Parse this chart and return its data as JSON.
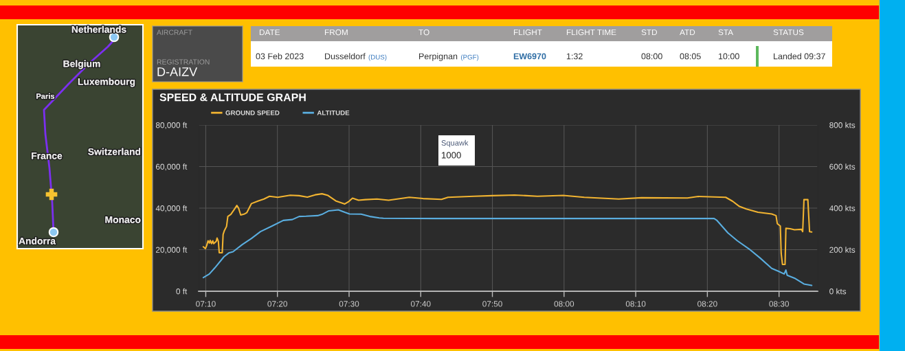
{
  "chart_data": [
    {
      "type": "other",
      "annotations": [
        "Netherlands",
        "Belgium",
        "Luxembourg",
        "Paris",
        "France",
        "Switzerland",
        "Monaco",
        "Andorra"
      ]
    },
    {
      "type": "other",
      "annotations": [
        "AIRCRAFT",
        "REGISTRATION",
        "D-AIZV"
      ]
    },
    {
      "type": "other",
      "categories": [
        "DATE",
        "FROM",
        "TO",
        "FLIGHT",
        "FLIGHT TIME",
        "STD",
        "ATD",
        "STA",
        "STATUS"
      ],
      "annotations": [
        "03 Feb 2023",
        "Dusseldorf (DUS)",
        "Perpignan (PGF)",
        "EW6970",
        "1:32",
        "08:00",
        "08:05",
        "10:00",
        "Landed 09:37"
      ]
    },
    {
      "type": "line",
      "title": "SPEED & ALTITUDE GRAPH",
      "legend": "top left",
      "grid": true,
      "xlim": [
        7.15,
        8.59
      ],
      "xticks": [
        {
          "value": 7.1667,
          "label": "07:10"
        },
        {
          "value": 7.3333,
          "label": "07:20"
        },
        {
          "value": 7.5,
          "label": "07:30"
        },
        {
          "value": 7.6667,
          "label": "07:40"
        },
        {
          "value": 7.8333,
          "label": "07:50"
        },
        {
          "value": 8.0,
          "label": "08:00"
        },
        {
          "value": 8.1667,
          "label": "08:10"
        },
        {
          "value": 8.3333,
          "label": "08:20"
        },
        {
          "value": 8.5,
          "label": "08:30"
        }
      ],
      "ylim": [
        0,
        80000
      ],
      "yticks": [
        {
          "value": 0,
          "label": "0 ft"
        },
        {
          "value": 20000,
          "label": "20,000 ft"
        },
        {
          "value": 40000,
          "label": "40,000 ft"
        },
        {
          "value": 60000,
          "label": "60,000 ft"
        },
        {
          "value": 80000,
          "label": "80,000 ft"
        }
      ],
      "y2lim": [
        0,
        800
      ],
      "y2ticks": [
        {
          "value": 0,
          "label": "0 kts"
        },
        {
          "value": 200,
          "label": "200 kts"
        },
        {
          "value": 400,
          "label": "400 kts"
        },
        {
          "value": 600,
          "label": "600 kts"
        },
        {
          "value": 800,
          "label": "800 kts"
        }
      ],
      "annotations": [
        "Squawk",
        "1000"
      ],
      "series": [
        {
          "name": "GROUND SPEED",
          "color": "#f2b431",
          "axis": "y2",
          "x": [
            7.161,
            7.166,
            7.169,
            7.172,
            7.175,
            7.177,
            7.18,
            7.183,
            7.185,
            7.191,
            7.193,
            7.196,
            7.198,
            7.205,
            7.207,
            7.21,
            7.215,
            7.218,
            7.225,
            7.233,
            7.239,
            7.243,
            7.248,
            7.257,
            7.262,
            7.273,
            7.289,
            7.302,
            7.315,
            7.334,
            7.363,
            7.384,
            7.403,
            7.421,
            7.437,
            7.451,
            7.469,
            7.49,
            7.5,
            7.508,
            7.522,
            7.538,
            7.565,
            7.592,
            7.64,
            7.672,
            7.715,
            7.73,
            7.79,
            7.832,
            7.885,
            7.938,
            7.998,
            8.047,
            8.127,
            8.18,
            8.287,
            8.312,
            8.376,
            8.392,
            8.408,
            8.424,
            8.451,
            8.483,
            8.493,
            8.496,
            8.503,
            8.505,
            8.508,
            8.514,
            8.516,
            8.526,
            8.536,
            8.552,
            8.555,
            8.558,
            8.567,
            8.571,
            8.576
          ],
          "values": [
            214,
            205,
            221,
            243,
            232,
            245,
            229,
            243,
            229,
            240,
            256,
            240,
            185,
            185,
            273,
            292,
            312,
            360,
            370,
            394,
            413,
            400,
            367,
            372,
            378,
            422,
            435,
            444,
            457,
            452,
            462,
            460,
            453,
            464,
            469,
            461,
            435,
            420,
            433,
            448,
            438,
            441,
            444,
            438,
            452,
            446,
            442,
            452,
            457,
            460,
            463,
            457,
            461,
            452,
            444,
            450,
            449,
            456,
            452,
            433,
            408,
            396,
            380,
            372,
            364,
            325,
            314,
            182,
            129,
            129,
            303,
            301,
            296,
            298,
            287,
            441,
            441,
            287,
            285
          ]
        },
        {
          "name": "ALTITUDE",
          "color": "#5aaee0",
          "x": [
            7.161,
            7.175,
            7.188,
            7.209,
            7.22,
            7.23,
            7.252,
            7.273,
            7.294,
            7.321,
            7.347,
            7.368,
            7.384,
            7.4,
            7.427,
            7.437,
            7.453,
            7.475,
            7.49,
            7.501,
            7.528,
            7.548,
            7.57,
            7.58,
            7.7,
            7.85,
            8.0,
            8.15,
            8.3,
            8.349,
            8.355,
            8.381,
            8.403,
            8.43,
            8.456,
            8.483,
            8.499,
            8.512,
            8.516,
            8.519,
            8.536,
            8.558,
            8.576
          ],
          "values": [
            6600,
            8300,
            11300,
            16600,
            18400,
            19000,
            22500,
            25400,
            28700,
            31400,
            34100,
            34500,
            36000,
            36100,
            36400,
            37000,
            38700,
            39200,
            38000,
            37200,
            37100,
            36000,
            35300,
            35100,
            35000,
            35000,
            35000,
            35000,
            35000,
            35000,
            34200,
            28100,
            24300,
            20400,
            16000,
            11000,
            9600,
            8300,
            10200,
            7700,
            6300,
            3500,
            2800
          ]
        }
      ]
    }
  ]
}
